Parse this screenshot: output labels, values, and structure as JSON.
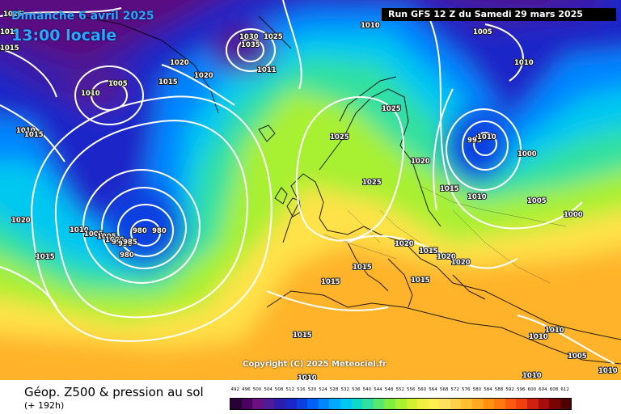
{
  "header": {
    "date": "Dimanche 6 avril 2025",
    "time": "13:00 locale",
    "run": "Run GFS 12 Z du Samedi 29 mars 2025"
  },
  "copyright": "Copyright (C) 2025 Meteociel.fr",
  "footer": {
    "title": "Géop. Z500 & pression au sol",
    "subtitle": "(+ 192h)"
  },
  "legend": {
    "labels": [
      "492",
      "496",
      "500",
      "504",
      "508",
      "512",
      "516",
      "520",
      "524",
      "528",
      "532",
      "536",
      "540",
      "544",
      "548",
      "552",
      "556",
      "560",
      "564",
      "568",
      "572",
      "576",
      "580",
      "584",
      "588",
      "592",
      "596",
      "600",
      "604",
      "608",
      "612"
    ],
    "colors": [
      "#2a0038",
      "#4b0060",
      "#6a1080",
      "#501a9a",
      "#2a1db0",
      "#1a28c8",
      "#0a3fe0",
      "#0060f8",
      "#0086ff",
      "#00aaff",
      "#00c8f0",
      "#10d8c8",
      "#30e0a0",
      "#58e870",
      "#80ee40",
      "#a8f030",
      "#d0f030",
      "#f0f040",
      "#fff050",
      "#ffe060",
      "#ffd048",
      "#ffc030",
      "#ffa820",
      "#ff9010",
      "#ff7810",
      "#ff5a10",
      "#f04010",
      "#d02010",
      "#a80c0c",
      "#780404",
      "#500000"
    ]
  },
  "isobars": [
    "1025",
    "1015",
    "1015",
    "1030",
    "1025",
    "1010",
    "1005",
    "1010",
    "1005",
    "1020",
    "1020",
    "1015",
    "1035",
    "1011",
    "1010",
    "1010",
    "1025",
    "1025",
    "1020",
    "995",
    "1010",
    "1000",
    "1005",
    "1000",
    "1015",
    "1010",
    "1025",
    "1020",
    "1010",
    "1005",
    "1005",
    "1000",
    "995",
    "990",
    "985",
    "980",
    "980",
    "980",
    "1015",
    "1020",
    "1015",
    "1015",
    "1020",
    "1020",
    "1015",
    "1015",
    "1015",
    "1010",
    "1010",
    "1005",
    "1010",
    "1010",
    "1010",
    "1015"
  ]
}
